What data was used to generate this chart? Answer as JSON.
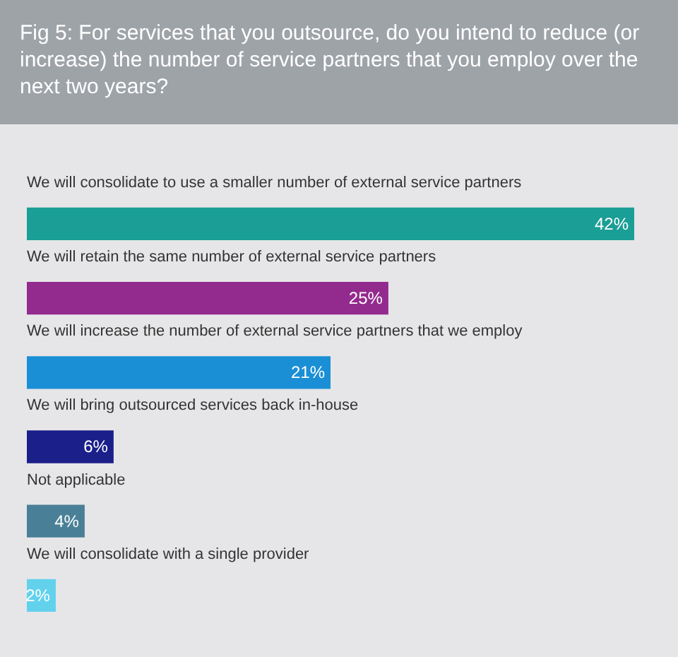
{
  "chart_data": {
    "type": "bar",
    "orientation": "horizontal",
    "title": "Fig 5: For services that you outsource, do you intend to reduce (or increase) the number of service partners that you employ over the next two years?",
    "categories": [
      "We will consolidate to use a smaller number of external service partners",
      "We will retain the same number of external service partners",
      "We will increase the number of external service partners that we employ",
      "We will bring outsourced services back in-house",
      "Not applicable",
      "We will consolidate with a single provider"
    ],
    "values": [
      42,
      25,
      21,
      6,
      4,
      2
    ],
    "value_labels": [
      "42%",
      "25%",
      "21%",
      "6%",
      "4%",
      "2%"
    ],
    "colors": [
      "#1a9e96",
      "#932a8e",
      "#1b8fd6",
      "#1b1f8a",
      "#4a8097",
      "#62d2ec"
    ]
  }
}
